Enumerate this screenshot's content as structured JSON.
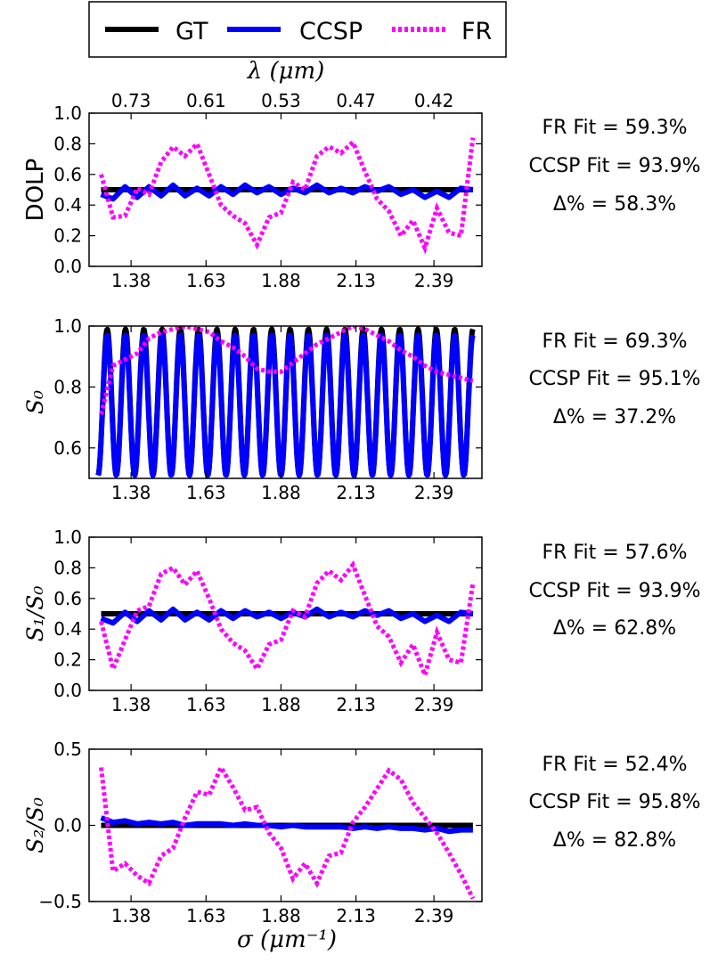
{
  "legend": {
    "entries": [
      {
        "label": "GT",
        "color": "#000000",
        "style": "solid"
      },
      {
        "label": "CCSP",
        "color": "#0000ff",
        "style": "solid"
      },
      {
        "label": "FR",
        "color": "#ff00ff",
        "style": "dotted"
      }
    ],
    "placement": "top-center"
  },
  "top_axis": {
    "label": "λ (μm)",
    "tick_labels": [
      "0.73",
      "0.61",
      "0.53",
      "0.47",
      "0.42"
    ]
  },
  "x_axis": {
    "label": "σ (μm⁻¹)",
    "range": [
      1.24,
      2.55
    ],
    "tick_values": [
      1.38,
      1.63,
      1.88,
      2.13,
      2.39
    ],
    "tick_labels": [
      "1.38",
      "1.63",
      "1.88",
      "2.13",
      "2.39"
    ]
  },
  "chart_data": [
    {
      "type": "line",
      "ylabel": "DOLP",
      "ylim": [
        0.0,
        1.0
      ],
      "yticks": [
        "0.0",
        "0.2",
        "0.4",
        "0.6",
        "0.8",
        "1.0"
      ],
      "x": [
        1.28,
        1.32,
        1.36,
        1.4,
        1.44,
        1.48,
        1.52,
        1.56,
        1.6,
        1.64,
        1.68,
        1.72,
        1.76,
        1.8,
        1.84,
        1.88,
        1.92,
        1.96,
        2.0,
        2.04,
        2.08,
        2.12,
        2.16,
        2.2,
        2.24,
        2.28,
        2.32,
        2.36,
        2.4,
        2.44,
        2.48,
        2.52
      ],
      "series": [
        {
          "name": "GT",
          "values": [
            0.5,
            0.5,
            0.5,
            0.5,
            0.5,
            0.5,
            0.5,
            0.5,
            0.5,
            0.5,
            0.5,
            0.5,
            0.5,
            0.5,
            0.5,
            0.5,
            0.5,
            0.5,
            0.5,
            0.5,
            0.5,
            0.5,
            0.5,
            0.5,
            0.5,
            0.5,
            0.5,
            0.5,
            0.5,
            0.5,
            0.5,
            0.5
          ]
        },
        {
          "name": "CCSP",
          "values": [
            0.47,
            0.44,
            0.52,
            0.45,
            0.52,
            0.46,
            0.53,
            0.46,
            0.51,
            0.46,
            0.52,
            0.47,
            0.53,
            0.48,
            0.52,
            0.47,
            0.51,
            0.48,
            0.53,
            0.48,
            0.51,
            0.48,
            0.52,
            0.49,
            0.52,
            0.47,
            0.5,
            0.45,
            0.49,
            0.45,
            0.51,
            0.5
          ]
        },
        {
          "name": "FR",
          "values": [
            0.6,
            0.32,
            0.33,
            0.51,
            0.47,
            0.68,
            0.78,
            0.72,
            0.8,
            0.6,
            0.4,
            0.33,
            0.28,
            0.14,
            0.32,
            0.35,
            0.55,
            0.5,
            0.72,
            0.78,
            0.74,
            0.81,
            0.62,
            0.44,
            0.36,
            0.2,
            0.3,
            0.12,
            0.38,
            0.22,
            0.2,
            0.84
          ]
        }
      ],
      "annotations": {
        "fr_fit": "FR Fit = 59.3%",
        "ccsp_fit": "CCSP Fit = 93.9%",
        "delta": "Δ% = 58.3%"
      }
    },
    {
      "type": "line",
      "ylabel": "S₀",
      "ylim": [
        0.5,
        1.0
      ],
      "yticks": [
        "0.6",
        "0.8",
        "1.0"
      ],
      "series": [
        {
          "name": "GT",
          "oscillation": {
            "mean": 0.75,
            "amplitude": 0.24,
            "cycles": 20.5
          }
        },
        {
          "name": "CCSP",
          "oscillation": {
            "mean": 0.74,
            "amplitude": 0.23,
            "cycles": 20.5
          }
        },
        {
          "name": "FR",
          "x": [
            1.28,
            1.32,
            1.36,
            1.4,
            1.44,
            1.48,
            1.52,
            1.56,
            1.6,
            1.64,
            1.68,
            1.72,
            1.76,
            1.8,
            1.84,
            1.88,
            1.92,
            1.96,
            2.0,
            2.04,
            2.08,
            2.12,
            2.16,
            2.2,
            2.24,
            2.28,
            2.32,
            2.36,
            2.4,
            2.44,
            2.48,
            2.52
          ],
          "values": [
            0.71,
            0.87,
            0.89,
            0.91,
            0.96,
            0.98,
            0.99,
            1.0,
            0.99,
            0.98,
            0.95,
            0.93,
            0.9,
            0.86,
            0.85,
            0.85,
            0.88,
            0.91,
            0.94,
            0.96,
            0.98,
            1.0,
            0.99,
            0.97,
            0.95,
            0.92,
            0.9,
            0.87,
            0.85,
            0.84,
            0.83,
            0.82
          ]
        }
      ],
      "annotations": {
        "fr_fit": "FR Fit = 69.3%",
        "ccsp_fit": "CCSP Fit = 95.1%",
        "delta": "Δ% = 37.2%"
      }
    },
    {
      "type": "line",
      "ylabel": "S₁/S₀",
      "ylim": [
        0.0,
        1.0
      ],
      "yticks": [
        "0.0",
        "0.2",
        "0.4",
        "0.6",
        "0.8",
        "1.0"
      ],
      "x": [
        1.28,
        1.32,
        1.36,
        1.4,
        1.44,
        1.48,
        1.52,
        1.56,
        1.6,
        1.64,
        1.68,
        1.72,
        1.76,
        1.8,
        1.84,
        1.88,
        1.92,
        1.96,
        2.0,
        2.04,
        2.08,
        2.12,
        2.16,
        2.2,
        2.24,
        2.28,
        2.32,
        2.36,
        2.4,
        2.44,
        2.48,
        2.52
      ],
      "series": [
        {
          "name": "GT",
          "values": [
            0.5,
            0.5,
            0.5,
            0.5,
            0.5,
            0.5,
            0.5,
            0.5,
            0.5,
            0.5,
            0.5,
            0.5,
            0.5,
            0.5,
            0.5,
            0.5,
            0.5,
            0.5,
            0.5,
            0.5,
            0.5,
            0.5,
            0.5,
            0.5,
            0.5,
            0.5,
            0.5,
            0.5,
            0.5,
            0.5,
            0.5,
            0.5
          ]
        },
        {
          "name": "CCSP",
          "values": [
            0.47,
            0.44,
            0.51,
            0.45,
            0.52,
            0.46,
            0.53,
            0.46,
            0.51,
            0.46,
            0.52,
            0.47,
            0.52,
            0.48,
            0.51,
            0.47,
            0.51,
            0.48,
            0.53,
            0.48,
            0.51,
            0.48,
            0.52,
            0.49,
            0.52,
            0.47,
            0.5,
            0.45,
            0.49,
            0.45,
            0.51,
            0.5
          ]
        },
        {
          "name": "FR",
          "values": [
            0.45,
            0.14,
            0.33,
            0.52,
            0.55,
            0.76,
            0.8,
            0.69,
            0.78,
            0.6,
            0.4,
            0.31,
            0.26,
            0.14,
            0.3,
            0.33,
            0.52,
            0.48,
            0.7,
            0.78,
            0.72,
            0.82,
            0.62,
            0.42,
            0.35,
            0.18,
            0.3,
            0.1,
            0.38,
            0.2,
            0.18,
            0.7
          ]
        }
      ],
      "annotations": {
        "fr_fit": "FR Fit = 57.6%",
        "ccsp_fit": "CCSP Fit = 93.9%",
        "delta": "Δ% = 62.8%"
      }
    },
    {
      "type": "line",
      "ylabel": "S₂/S₀",
      "ylim": [
        -0.5,
        0.5
      ],
      "yticks": [
        "−0.5",
        "0.0",
        "0.5"
      ],
      "x": [
        1.28,
        1.32,
        1.36,
        1.4,
        1.44,
        1.48,
        1.52,
        1.56,
        1.6,
        1.64,
        1.68,
        1.72,
        1.76,
        1.8,
        1.84,
        1.88,
        1.92,
        1.96,
        2.0,
        2.04,
        2.08,
        2.12,
        2.16,
        2.2,
        2.24,
        2.28,
        2.32,
        2.36,
        2.4,
        2.44,
        2.48,
        2.52
      ],
      "series": [
        {
          "name": "GT",
          "values": [
            0.0,
            0.0,
            0.0,
            0.0,
            0.0,
            0.0,
            0.0,
            0.0,
            0.0,
            0.0,
            0.0,
            0.0,
            0.0,
            0.0,
            0.0,
            0.0,
            0.0,
            0.0,
            0.0,
            0.0,
            0.0,
            0.0,
            0.0,
            0.0,
            0.0,
            0.0,
            0.0,
            0.0,
            0.0,
            0.0,
            0.0,
            0.0
          ]
        },
        {
          "name": "CCSP",
          "values": [
            0.05,
            0.02,
            0.03,
            0.01,
            0.02,
            0.01,
            0.02,
            0.0,
            0.01,
            0.01,
            0.01,
            0.0,
            0.01,
            0.0,
            0.0,
            -0.01,
            0.0,
            -0.01,
            -0.01,
            -0.01,
            -0.01,
            -0.02,
            -0.01,
            -0.02,
            -0.01,
            -0.02,
            -0.02,
            -0.03,
            -0.02,
            -0.04,
            -0.03,
            -0.03
          ]
        },
        {
          "name": "FR",
          "values": [
            0.38,
            -0.3,
            -0.25,
            -0.33,
            -0.38,
            -0.2,
            -0.15,
            0.05,
            0.22,
            0.2,
            0.38,
            0.25,
            0.1,
            0.12,
            -0.05,
            -0.15,
            -0.35,
            -0.25,
            -0.38,
            -0.2,
            -0.18,
            0.02,
            0.12,
            0.24,
            0.36,
            0.3,
            0.15,
            0.05,
            -0.05,
            -0.18,
            -0.32,
            -0.48
          ]
        }
      ],
      "annotations": {
        "fr_fit": "FR Fit = 52.4%",
        "ccsp_fit": "CCSP Fit = 95.8%",
        "delta": "Δ% = 82.8%"
      }
    }
  ]
}
